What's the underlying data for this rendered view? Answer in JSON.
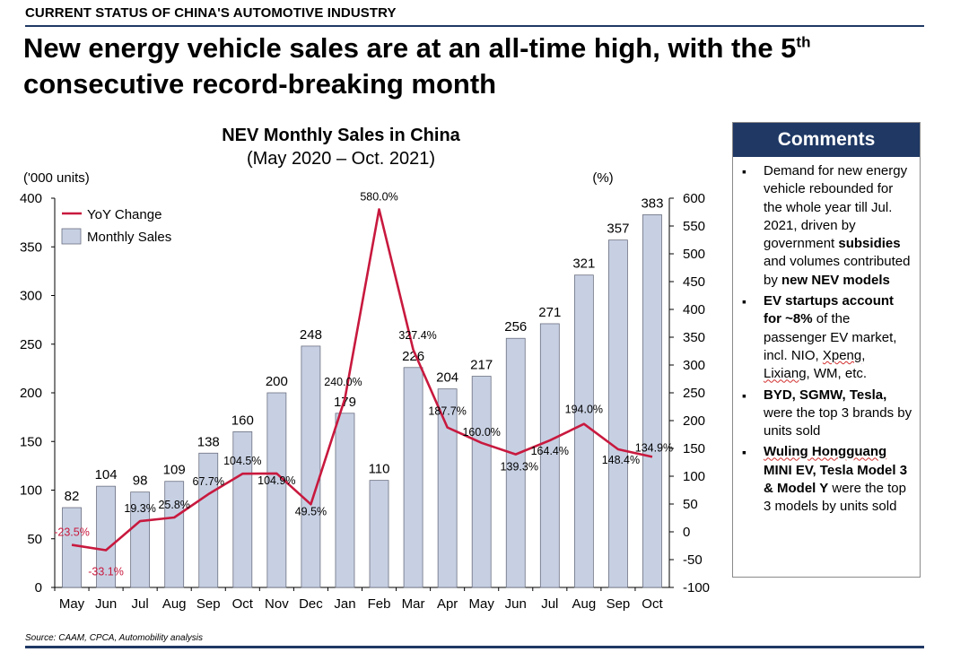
{
  "header": {
    "section_label": "CURRENT STATUS OF CHINA'S AUTOMOTIVE INDUSTRY",
    "headline_main": "New energy vehicle sales are at an all-time high, with the 5",
    "headline_sup": "th",
    "headline_tail": "consecutive record-breaking month"
  },
  "chart_data": {
    "type": "bar",
    "title": "NEV Monthly Sales in China",
    "subtitle": "(May 2020 – Oct. 2021)",
    "ylabel": "('000 units)",
    "y2label": "(%)",
    "categories": [
      "May",
      "Jun",
      "Jul",
      "Aug",
      "Sep",
      "Oct",
      "Nov",
      "Dec",
      "Jan",
      "Feb",
      "Mar",
      "Apr",
      "May",
      "Jun",
      "Jul",
      "Aug",
      "Sep",
      "Oct"
    ],
    "ylim": [
      0,
      400
    ],
    "yticks": [
      0,
      50,
      100,
      150,
      200,
      250,
      300,
      350,
      400
    ],
    "y2lim": [
      -100,
      600
    ],
    "y2ticks": [
      -100,
      -50,
      0,
      50,
      100,
      150,
      200,
      250,
      300,
      350,
      400,
      450,
      500,
      550,
      600
    ],
    "series": [
      {
        "name": "Monthly Sales",
        "type": "bar",
        "axis": "left",
        "color": "#c7d0e3",
        "values": [
          82,
          104,
          98,
          109,
          138,
          160,
          200,
          248,
          179,
          110,
          226,
          204,
          217,
          256,
          271,
          321,
          357,
          383
        ],
        "labels": [
          "82",
          "104",
          "98",
          "109",
          "138",
          "160",
          "200",
          "248",
          "179",
          "110",
          "226",
          "204",
          "217",
          "256",
          "271",
          "321",
          "357",
          "383"
        ]
      },
      {
        "name": "YoY Change",
        "type": "line",
        "axis": "right",
        "color": "#c8193e",
        "values": [
          -23.5,
          -33.1,
          19.3,
          25.8,
          67.7,
          104.5,
          104.9,
          49.5,
          240.0,
          580.0,
          327.4,
          187.7,
          160.0,
          139.3,
          164.4,
          194.0,
          148.4,
          134.9
        ],
        "labels": [
          "-23.5%",
          "-33.1%",
          "19.3%",
          "25.8%",
          "67.7%",
          "104.5%",
          "104.9%",
          "49.5%",
          "240.0%",
          "580.0%",
          "327.4%",
          "187.7%",
          "160.0%",
          "139.3%",
          "164.4%",
          "194.0%",
          "148.4%",
          "134.9%"
        ]
      }
    ],
    "legend": {
      "position": "top-left"
    },
    "grid": false
  },
  "comments": {
    "title": "Comments",
    "c1": {
      "t1": "Demand for new energy vehicle rebounded for the whole year till Jul. 2021, driven by government ",
      "b1": "subsidies",
      "t2": " and volumes contributed by ",
      "b2": "new NEV models"
    },
    "c2": {
      "b1": "EV startups account for ~8%",
      "t1": " of the passenger EV market, incl. NIO, ",
      "w1": "Xpeng",
      "t2": ", ",
      "w2": "Lixiang",
      "t3": ", WM, etc."
    },
    "c3": {
      "b1": "BYD, SGMW, Tesla,",
      "t1": " were the top 3 brands by units sold"
    },
    "c4": {
      "w1": "Wuling Hongguang",
      "b1": " MINI EV, Tesla Model 3 & Model Y",
      "t1": " were the top 3 models by units sold"
    }
  },
  "footer": {
    "source": "Source: CAAM, CPCA, Automobility analysis"
  }
}
